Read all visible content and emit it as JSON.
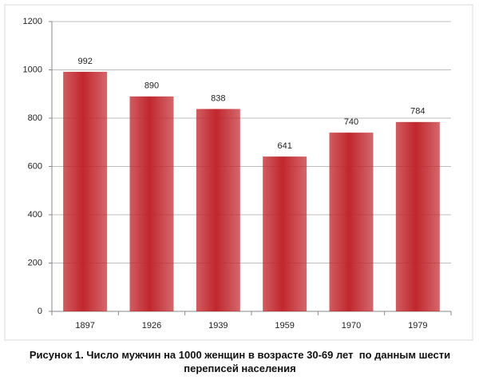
{
  "chart_data": {
    "type": "bar",
    "title": "Рисунок 1. Число мужчин на 1000 женщин в возрасте 30-69 лет  по данным шести переписей населения",
    "categories": [
      "1897",
      "1926",
      "1939",
      "1959",
      "1970",
      "1979"
    ],
    "values": [
      992,
      890,
      838,
      641,
      740,
      784
    ],
    "color": "#c0272d",
    "ylim": [
      0,
      1200
    ],
    "yticks": [
      0,
      200,
      400,
      600,
      800,
      1000,
      1200
    ],
    "grid": true
  }
}
